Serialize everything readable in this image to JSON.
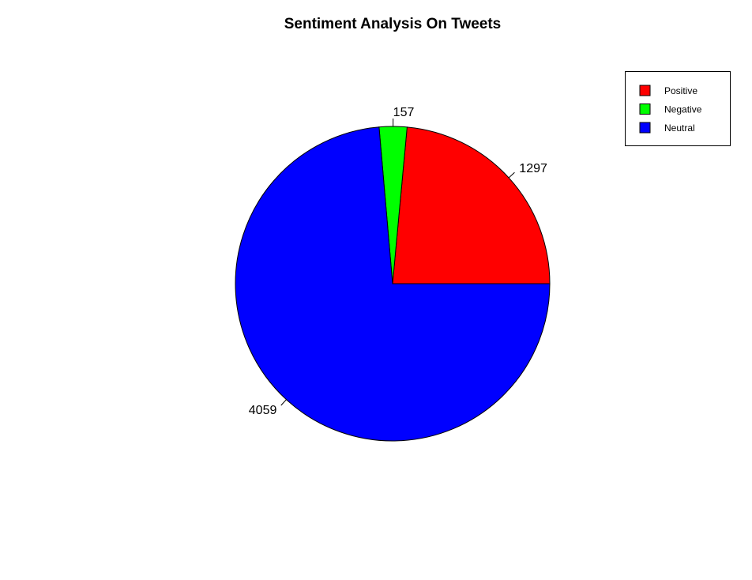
{
  "chart_data": {
    "type": "pie",
    "title": "Sentiment Analysis On Tweets",
    "slices": [
      {
        "label": "Positive",
        "value": 1297,
        "color": "#ff0000"
      },
      {
        "label": "Negative",
        "value": 157,
        "color": "#00ff00"
      },
      {
        "label": "Neutral",
        "value": 4059,
        "color": "#0000ff"
      }
    ],
    "start": "3 o'clock",
    "direction": "counterclockwise",
    "legend_position": "top-right"
  }
}
